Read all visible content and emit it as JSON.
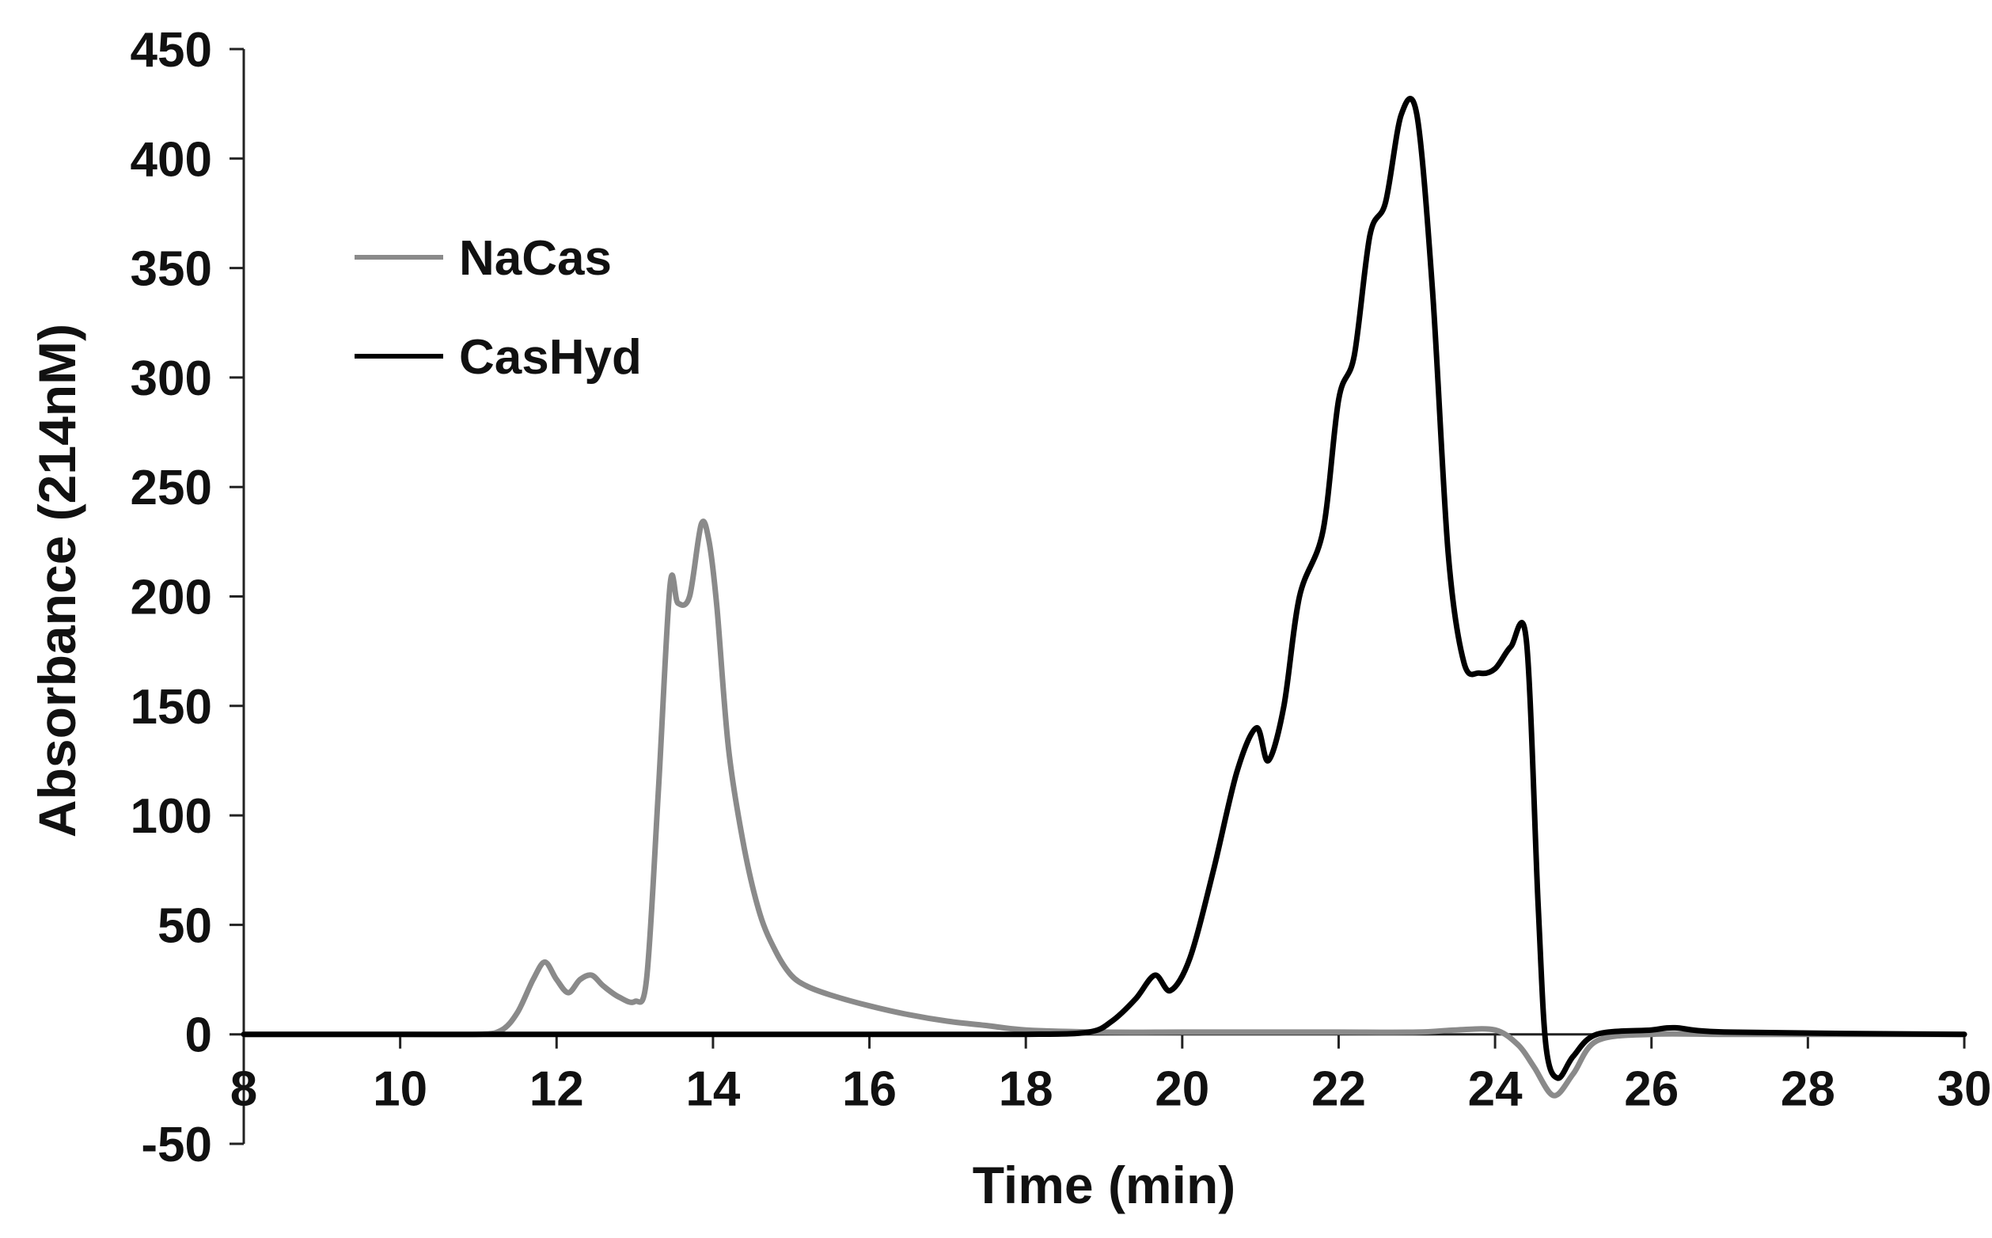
{
  "chart_data": {
    "type": "line",
    "title": "",
    "xlabel": "Time (min)",
    "ylabel": "Absorbance (214nM)",
    "xlim": [
      8,
      30
    ],
    "ylim": [
      -50,
      450
    ],
    "xticks": [
      8,
      10,
      12,
      14,
      16,
      18,
      20,
      22,
      24,
      26,
      28,
      30
    ],
    "yticks": [
      450,
      400,
      350,
      300,
      250,
      200,
      150,
      100,
      50,
      0,
      -50
    ],
    "grid": false,
    "legend_position": "top-left",
    "series": [
      {
        "name": "NaCas",
        "color": "#8a8a8a",
        "x": [
          8,
          10,
          11,
          11.3,
          11.5,
          11.7,
          11.85,
          12.0,
          12.15,
          12.3,
          12.45,
          12.6,
          12.8,
          13.0,
          13.15,
          13.3,
          13.45,
          13.55,
          13.7,
          13.85,
          13.95,
          14.05,
          14.2,
          14.4,
          14.6,
          14.8,
          15.0,
          15.2,
          15.5,
          16.0,
          16.5,
          17.0,
          17.5,
          18.0,
          19.0,
          20.0,
          21.0,
          22.0,
          23.0,
          23.5,
          24.0,
          24.3,
          24.5,
          24.75,
          25.0,
          25.3,
          26.0,
          27.0,
          30.0
        ],
        "y": [
          0,
          0,
          0,
          2,
          10,
          25,
          33,
          25,
          19,
          25,
          27,
          22,
          17,
          15,
          25,
          110,
          205,
          197,
          200,
          233,
          225,
          195,
          130,
          85,
          55,
          38,
          27,
          22,
          18,
          13,
          9,
          6,
          4,
          2,
          1,
          1,
          1,
          1,
          1,
          2,
          2,
          -5,
          -15,
          -28,
          -18,
          -3,
          0,
          0,
          0
        ]
      },
      {
        "name": "CasHyd",
        "color": "#000000",
        "x": [
          8,
          12,
          16,
          18,
          18.8,
          19.1,
          19.4,
          19.65,
          19.85,
          20.1,
          20.4,
          20.7,
          20.95,
          21.1,
          21.3,
          21.5,
          21.8,
          22.0,
          22.2,
          22.4,
          22.6,
          22.8,
          23.0,
          23.2,
          23.4,
          23.6,
          23.8,
          24.0,
          24.2,
          24.4,
          24.55,
          24.65,
          24.8,
          25.0,
          25.3,
          26.0,
          26.3,
          27.0,
          30.0
        ],
        "y": [
          0,
          0,
          0,
          0,
          1,
          6,
          16,
          27,
          20,
          35,
          75,
          120,
          140,
          125,
          150,
          200,
          230,
          290,
          310,
          365,
          380,
          420,
          420,
          340,
          220,
          170,
          165,
          167,
          177,
          180,
          60,
          -5,
          -20,
          -10,
          0,
          2,
          3,
          1,
          0
        ]
      }
    ]
  }
}
